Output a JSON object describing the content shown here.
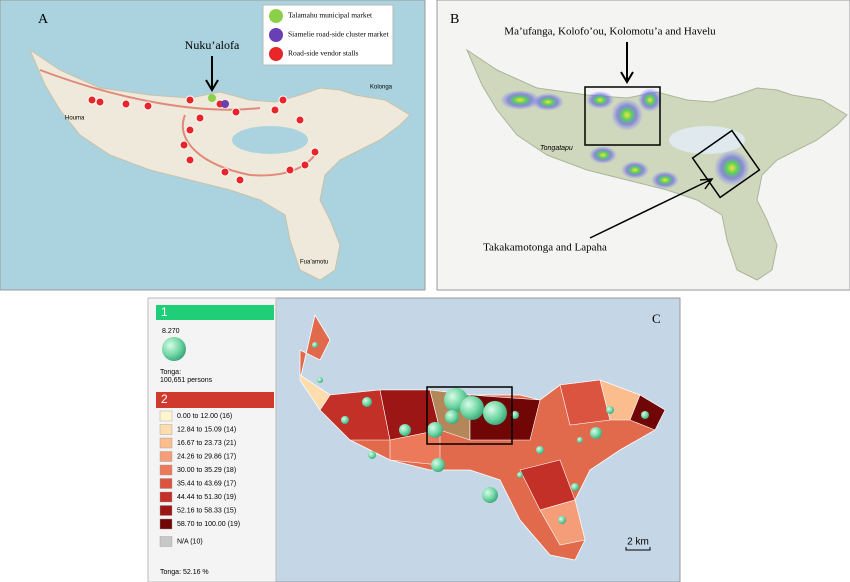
{
  "panel_a": {
    "label": "A",
    "annotation": "Nuku’alofa",
    "places": [
      "Kolonga",
      "Houma",
      "Fua’amotu"
    ],
    "legend": [
      {
        "name": "Talamahu municipal market",
        "color": "#8cd04a"
      },
      {
        "name": "Siamelie road-side cluster market",
        "color": "#6a3fb5"
      },
      {
        "name": "Road-side vendor stalls",
        "color": "#e8262a"
      }
    ]
  },
  "panel_b": {
    "label": "B",
    "annotation_top": "Ma’ufanga, Kolofo’ou, Kolomotu’a and Havelu",
    "annotation_bottom": "Takakamotonga and Lapaha",
    "place": "Tongatapu"
  },
  "panel_c": {
    "label": "C",
    "legend_1": {
      "header": "1",
      "value": "8.270",
      "region": "Tonga:",
      "total": "100,651 persons"
    },
    "legend_2": {
      "header": "2",
      "classes": [
        {
          "label": "0.00 to 12.00 (16)",
          "color": "#fff5cf"
        },
        {
          "label": "12.84 to 15.09 (14)",
          "color": "#fddcae"
        },
        {
          "label": "16.67 to 23.73 (21)",
          "color": "#fbbd8e"
        },
        {
          "label": "24.26 to 29.86 (17)",
          "color": "#f59d78"
        },
        {
          "label": "30.00 to 35.29 (18)",
          "color": "#ec7a5a"
        },
        {
          "label": "35.44 to 43.69 (17)",
          "color": "#db5440"
        },
        {
          "label": "44.44 to 51.30 (19)",
          "color": "#c33027"
        },
        {
          "label": "52.16 to 58.33 (15)",
          "color": "#9c1616"
        },
        {
          "label": "58.70 to 100.00 (19)",
          "color": "#700606"
        },
        {
          "label": "N/A (10)",
          "color": "#c8c8c8"
        }
      ],
      "footer": "Tonga: 52.16 %"
    },
    "scale": "2 km"
  }
}
